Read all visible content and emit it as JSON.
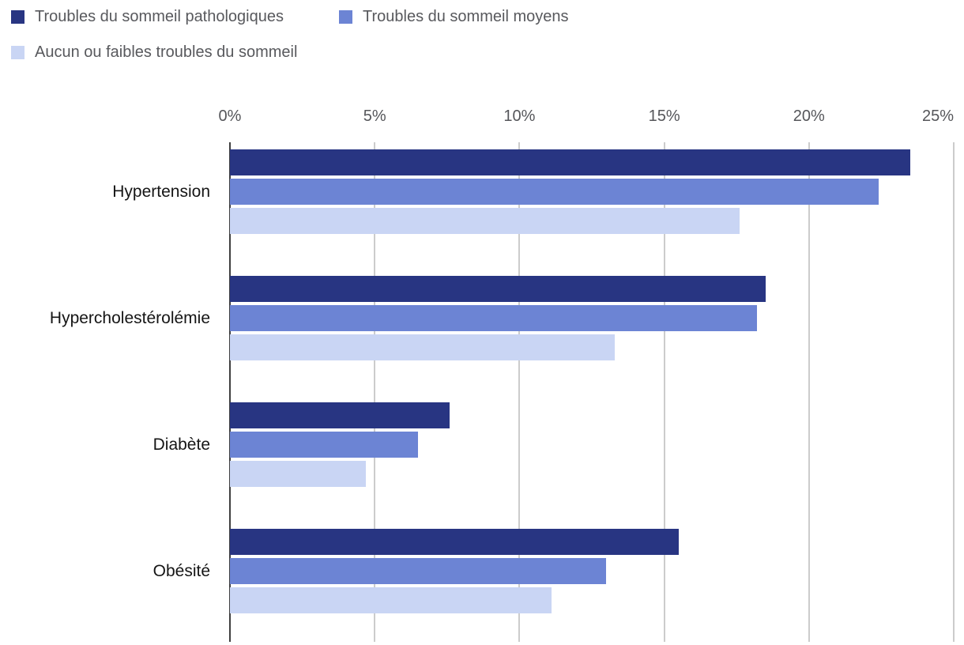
{
  "chart_data": {
    "type": "bar",
    "orientation": "horizontal",
    "title": "",
    "xlabel": "",
    "ylabel": "",
    "xlim": [
      0,
      25
    ],
    "x_ticks": [
      "0%",
      "5%",
      "10%",
      "15%",
      "20%",
      "25%"
    ],
    "grid": true,
    "legend_position": "top-left",
    "categories": [
      "Hypertension",
      "Hypercholestérolémie",
      "Diabète",
      "Obésité"
    ],
    "series": [
      {
        "name": "Troubles du sommeil pathologiques",
        "color": "#283582",
        "values": [
          23.5,
          18.5,
          7.6,
          15.5
        ]
      },
      {
        "name": "Troubles du sommeil moyens",
        "color": "#6c84d4",
        "values": [
          22.4,
          18.2,
          6.5,
          13.0
        ]
      },
      {
        "name": "Aucun ou faibles troubles du sommeil",
        "color": "#c9d5f4",
        "values": [
          17.6,
          13.3,
          4.7,
          11.1
        ]
      }
    ],
    "colors": {
      "gridline": "#cccccc",
      "zero_axis": "#3f3f3f",
      "tick_text": "#55565a",
      "legend_text": "#58595d",
      "category_text": "#151515"
    }
  }
}
